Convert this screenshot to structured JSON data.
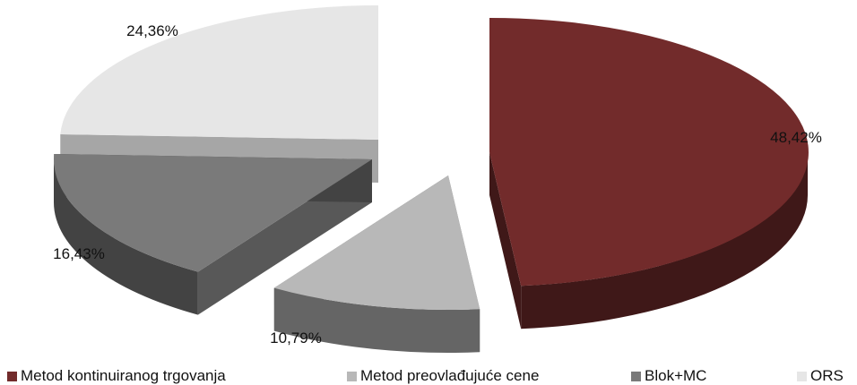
{
  "chart_data": {
    "type": "pie",
    "style": "3d-exploded",
    "title": "",
    "slices": [
      {
        "label": "Metod kontinuiranog trgovanja",
        "value": 48.42,
        "value_label": "48,42%",
        "color": "#722b2b"
      },
      {
        "label": "Metod preovlađujuće cene",
        "value": 10.79,
        "value_label": "10,79%",
        "color": "#b8b8b8"
      },
      {
        "label": "Blok+MC",
        "value": 16.43,
        "value_label": "16,43%",
        "color": "#7a7a7a"
      },
      {
        "label": "ORS",
        "value": 24.36,
        "value_label": "24,36%",
        "color": "#e6e6e6"
      }
    ],
    "legend_position": "bottom"
  }
}
